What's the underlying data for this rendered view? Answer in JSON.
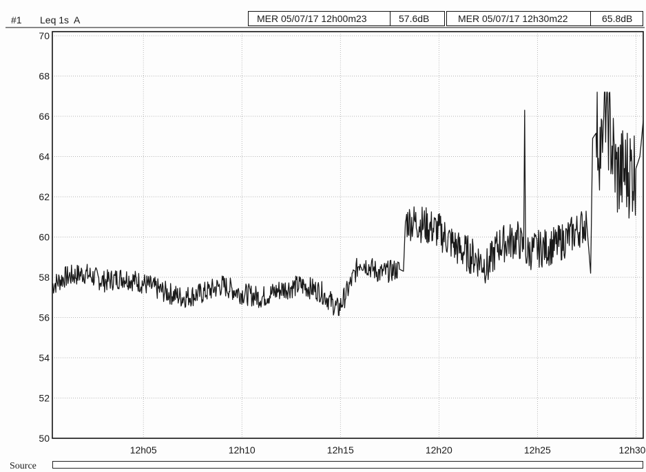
{
  "header": {
    "channel": "#1",
    "measure": "Leq 1s  A",
    "cursor1": {
      "datetime": "MER 05/07/17 12h00m23",
      "value": "57.6",
      "unit": "dB"
    },
    "cursor2": {
      "datetime": "MER 05/07/17 12h30m22",
      "value": "65.8",
      "unit": "dB"
    }
  },
  "footer": {
    "source_label": "Source"
  },
  "chart_data": {
    "type": "line",
    "title": "",
    "xlabel": "",
    "ylabel": "",
    "x_unit": "minutes",
    "xlim": [
      "12h00m23",
      "12h30m22"
    ],
    "ylim": [
      50,
      70
    ],
    "y_ticks": [
      50,
      52,
      54,
      56,
      58,
      60,
      62,
      64,
      66,
      68,
      70
    ],
    "x_ticks": [
      "12h05",
      "12h10",
      "12h15",
      "12h20",
      "12h25",
      "12h30"
    ],
    "x_tick_minutes": [
      5,
      10,
      15,
      20,
      25,
      30
    ],
    "grid": true,
    "line_color": "#1a1a1a",
    "series": [
      {
        "name": "",
        "x": [
          0.38,
          1,
          2,
          3,
          4,
          5,
          6,
          7,
          8,
          9,
          10,
          11,
          12,
          13,
          14,
          14.5,
          14.9,
          15.3,
          16,
          17,
          18,
          18.2,
          18.3,
          19,
          20,
          21,
          22,
          22.5,
          23,
          24,
          24.3,
          24.35,
          24.4,
          25,
          26,
          27,
          27.5,
          27.7,
          27.8,
          28,
          28.3,
          28.4,
          29,
          30,
          30.2,
          30.37
        ],
        "y": [
          57.6,
          58.0,
          58.2,
          57.8,
          58.0,
          57.7,
          57.3,
          57.0,
          57.2,
          57.6,
          57.2,
          57.0,
          57.4,
          57.6,
          57.3,
          56.8,
          56.4,
          57.2,
          58.8,
          58.2,
          58.4,
          58.3,
          60.8,
          60.7,
          60.3,
          59.4,
          58.9,
          58.5,
          59.6,
          59.9,
          59.4,
          66.3,
          59.2,
          59.4,
          59.6,
          60.3,
          60.7,
          58.2,
          64.9,
          65.2,
          64.2,
          67.0,
          63.1,
          63.4,
          64.0,
          65.8
        ]
      }
    ]
  }
}
